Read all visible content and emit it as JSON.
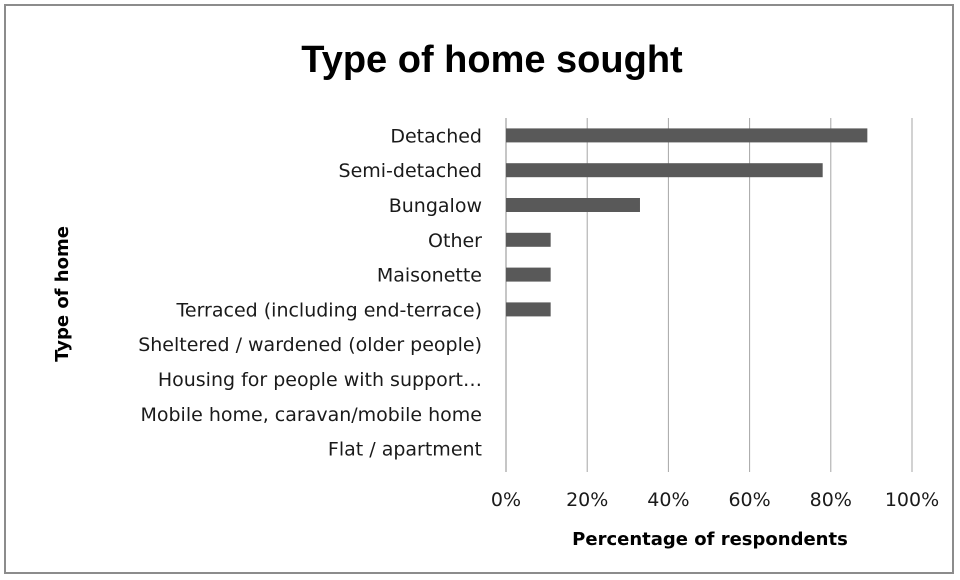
{
  "chart_data": {
    "type": "bar",
    "orientation": "horizontal",
    "title": "Type of home sought",
    "xlabel": "Percentage of respondents",
    "ylabel": "Type of home",
    "categories": [
      "Detached",
      "Semi-detached",
      "Bungalow",
      "Other",
      "Maisonette",
      "Terraced (including end-terrace)",
      "Sheltered / wardened (older people)",
      "Housing for people with support…",
      "Mobile home, caravan/mobile home",
      "Flat / apartment"
    ],
    "values": [
      89,
      78,
      33,
      11,
      11,
      11,
      0,
      0,
      0,
      0
    ],
    "xlim": [
      0,
      100
    ],
    "xticks": [
      0,
      20,
      40,
      60,
      80,
      100
    ],
    "xtick_labels": [
      "0%",
      "20%",
      "40%",
      "60%",
      "80%",
      "100%"
    ],
    "grid": "vertical",
    "legend": "none",
    "bar_color": "#595959"
  }
}
